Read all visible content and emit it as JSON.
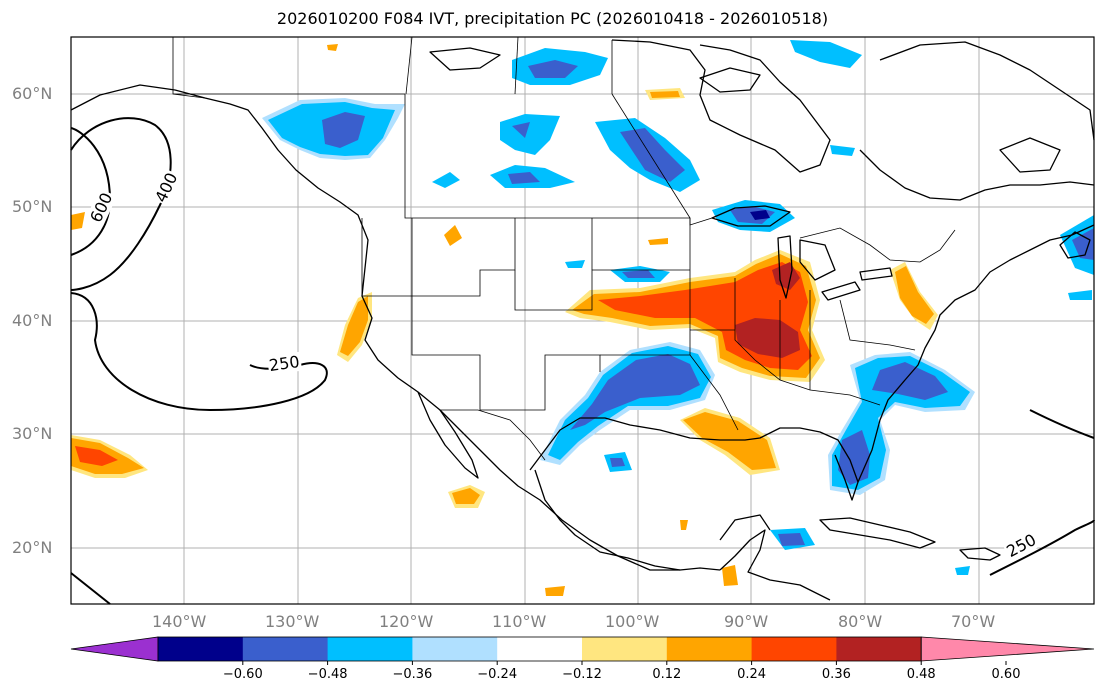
{
  "title": "2026010200 F084 IVT, precipitation PC (2026010418 - 2026010518)",
  "lat_labels": [
    "60°N",
    "50°N",
    "40°N",
    "30°N",
    "20°N"
  ],
  "lon_labels": [
    "140°W",
    "130°W",
    "120°W",
    "110°W",
    "100°W",
    "90°W",
    "80°W",
    "70°W"
  ],
  "ivt_contour_labels": [
    "600",
    "400",
    "250",
    "250"
  ],
  "colorbar": {
    "ticks": [
      "−0.60",
      "−0.48",
      "−0.36",
      "−0.24",
      "−0.12",
      "0.12",
      "0.24",
      "0.36",
      "0.48",
      "0.60"
    ],
    "colors": [
      "#9b30d0",
      "#00008b",
      "#3a5fcd",
      "#00bfff",
      "#b0e0ff",
      "#ffffff",
      "#ffe680",
      "#ffa500",
      "#ff4500",
      "#b22222",
      "#ff88aa"
    ]
  }
}
